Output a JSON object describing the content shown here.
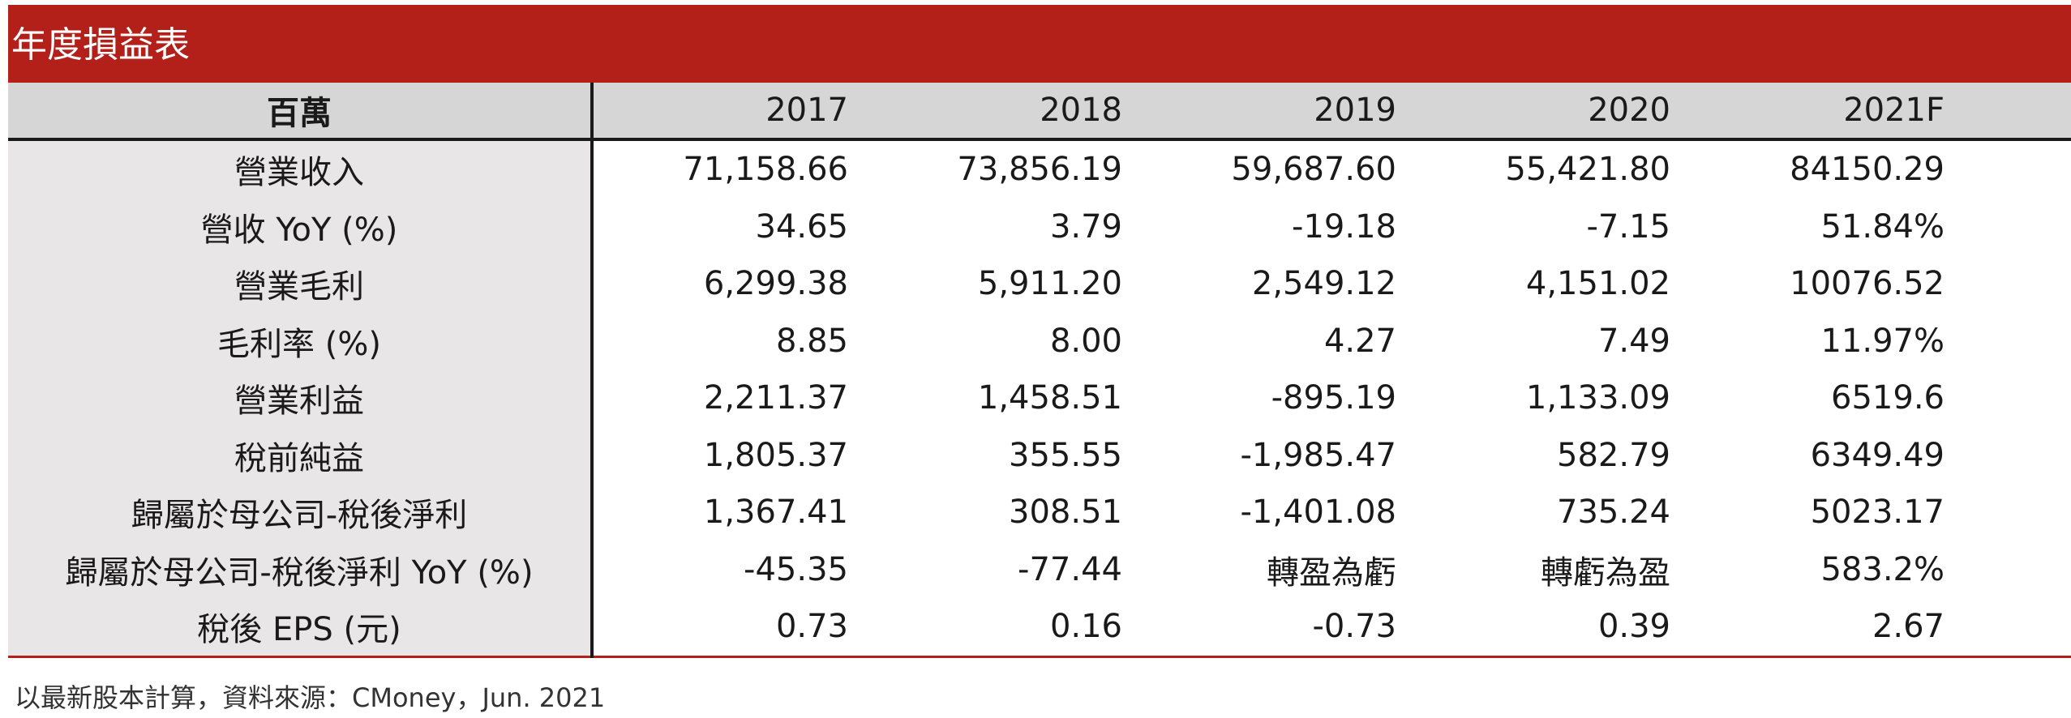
{
  "title": "年度損益表",
  "table": {
    "unit_label": "百萬",
    "years": [
      "2017",
      "2018",
      "2019",
      "2020",
      "2021F"
    ],
    "rows": [
      {
        "label": "營業收入",
        "values": [
          "71,158.66",
          "73,856.19",
          "59,687.60",
          "55,421.80",
          "84150.29"
        ]
      },
      {
        "label": "營收 YoY (%)",
        "values": [
          "34.65",
          "3.79",
          "-19.18",
          "-7.15",
          "51.84%"
        ]
      },
      {
        "label": "營業毛利",
        "values": [
          "6,299.38",
          "5,911.20",
          "2,549.12",
          "4,151.02",
          "10076.52"
        ]
      },
      {
        "label": "毛利率  (%)",
        "values": [
          "8.85",
          "8.00",
          "4.27",
          "7.49",
          "11.97%"
        ]
      },
      {
        "label": "營業利益",
        "values": [
          "2,211.37",
          "1,458.51",
          "-895.19",
          "1,133.09",
          "6519.6"
        ]
      },
      {
        "label": "稅前純益",
        "values": [
          "1,805.37",
          "355.55",
          "-1,985.47",
          "582.79",
          "6349.49"
        ]
      },
      {
        "label": "歸屬於母公司-稅後淨利",
        "values": [
          "1,367.41",
          "308.51",
          "-1,401.08",
          "735.24",
          "5023.17"
        ]
      },
      {
        "label": "歸屬於母公司-稅後淨利 YoY (%)",
        "values": [
          "-45.35",
          "-77.44",
          "轉盈為虧",
          "轉虧為盈",
          "583.2%"
        ]
      },
      {
        "label": "稅後 EPS (元)",
        "values": [
          "0.73",
          "0.16",
          "-0.73",
          "0.39",
          "2.67"
        ]
      }
    ]
  },
  "footnote": "以最新股本計算，資料來源：CMoney，Jun. 2021",
  "colors": {
    "title_background": "#b22019",
    "header_background": "#d6d6d6",
    "label_column_background": "#e8e6e7"
  }
}
